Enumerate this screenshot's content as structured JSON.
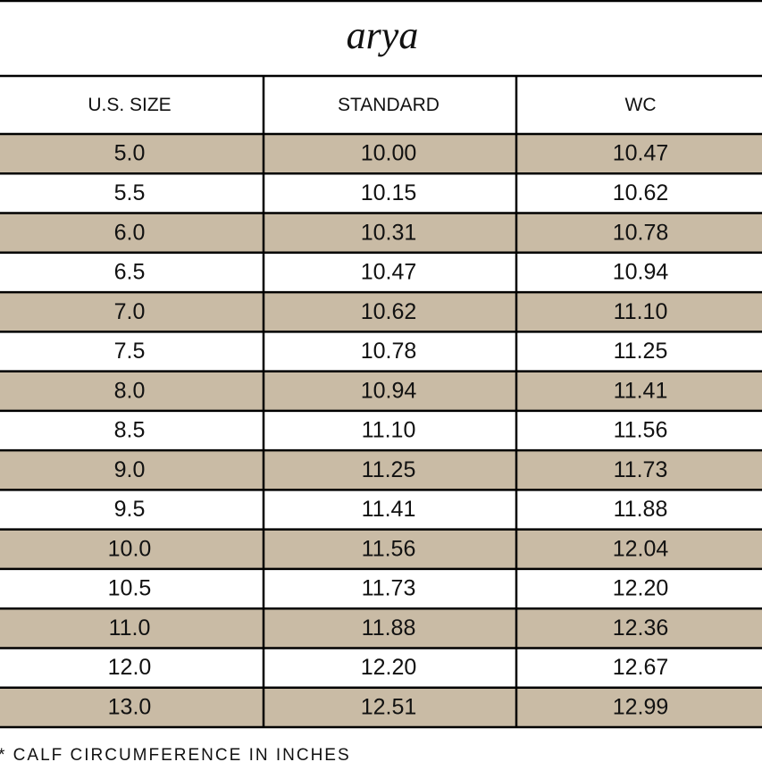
{
  "title": "arya",
  "table": {
    "header": [
      "U.S. SIZE",
      "STANDARD",
      "WC"
    ],
    "rows": [
      [
        "5.0",
        "10.00",
        "10.47"
      ],
      [
        "5.5",
        "10.15",
        "10.62"
      ],
      [
        "6.0",
        "10.31",
        "10.78"
      ],
      [
        "6.5",
        "10.47",
        "10.94"
      ],
      [
        "7.0",
        "10.62",
        "11.10"
      ],
      [
        "7.5",
        "10.78",
        "11.25"
      ],
      [
        "8.0",
        "10.94",
        "11.41"
      ],
      [
        "8.5",
        "11.10",
        "11.56"
      ],
      [
        "9.0",
        "11.25",
        "11.73"
      ],
      [
        "9.5",
        "11.41",
        "11.88"
      ],
      [
        "10.0",
        "11.56",
        "12.04"
      ],
      [
        "10.5",
        "11.73",
        "12.20"
      ],
      [
        "11.0",
        "11.88",
        "12.36"
      ],
      [
        "12.0",
        "12.20",
        "12.67"
      ],
      [
        "13.0",
        "12.51",
        "12.99"
      ]
    ]
  },
  "footnote": "* CALF CIRCUMFERENCE IN INCHES"
}
